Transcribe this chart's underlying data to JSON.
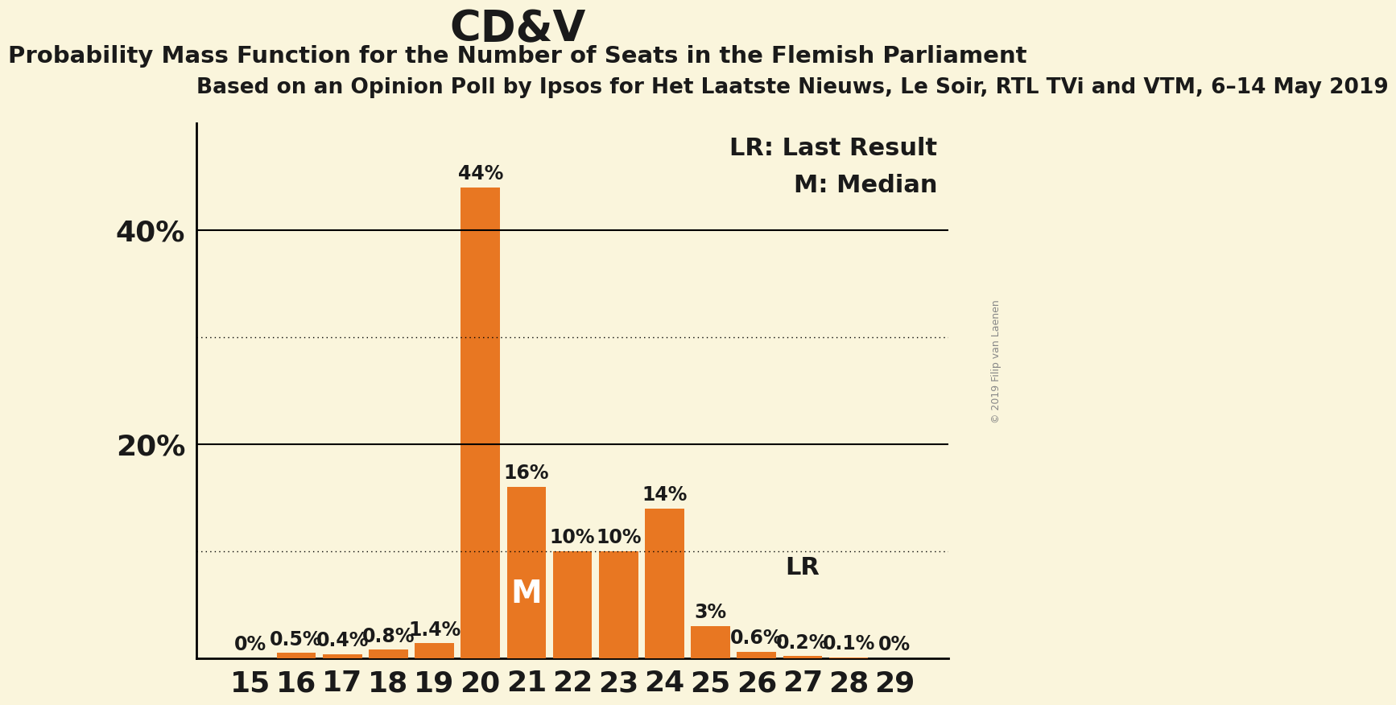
{
  "title": "CD&V",
  "subtitle1": "Probability Mass Function for the Number of Seats in the Flemish Parliament",
  "subtitle2": "Based on an Opinion Poll by Ipsos for Het Laatste Nieuws, Le Soir, RTL TVi and VTM, 6–14 May 2019",
  "copyright": "© 2019 Filip van Laenen",
  "categories": [
    15,
    16,
    17,
    18,
    19,
    20,
    21,
    22,
    23,
    24,
    25,
    26,
    27,
    28,
    29
  ],
  "values": [
    0.0,
    0.5,
    0.4,
    0.8,
    1.4,
    44.0,
    16.0,
    10.0,
    10.0,
    14.0,
    3.0,
    0.6,
    0.2,
    0.1,
    0.0
  ],
  "labels": [
    "0%",
    "0.5%",
    "0.4%",
    "0.8%",
    "1.4%",
    "44%",
    "16%",
    "10%",
    "10%",
    "14%",
    "3%",
    "0.6%",
    "0.2%",
    "0.1%",
    "0%"
  ],
  "bar_color": "#E87722",
  "background_color": "#FAF5DC",
  "text_color": "#1a1a1a",
  "median_seat": 21,
  "last_result_seat": 27,
  "ylim": [
    0,
    50
  ],
  "yticks_labeled": [
    20,
    40
  ],
  "yticks_dotted": [
    10,
    30
  ],
  "title_fontsize": 38,
  "subtitle1_fontsize": 21,
  "subtitle2_fontsize": 19,
  "axis_tick_fontsize": 26,
  "bar_label_fontsize": 17,
  "annotation_fontsize": 22,
  "legend_fontsize": 22,
  "copyright_fontsize": 9
}
